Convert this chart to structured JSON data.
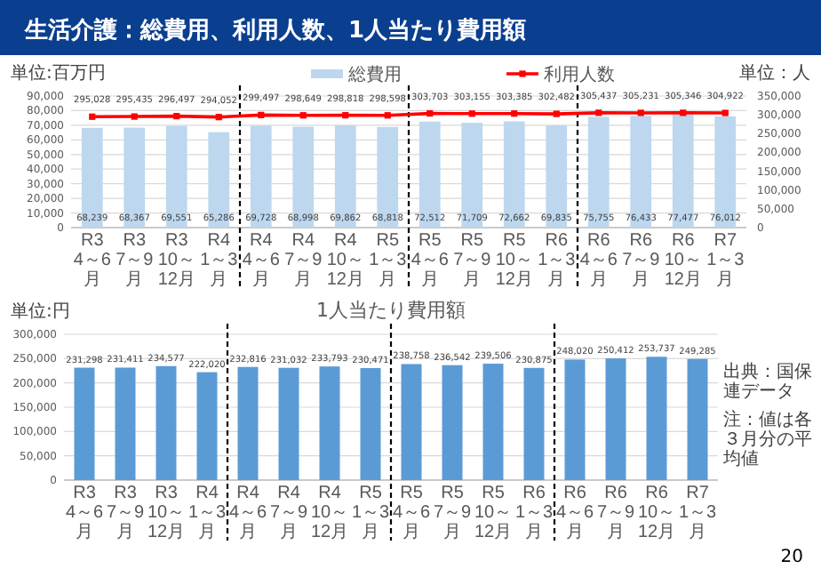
{
  "chart_data": [
    {
      "type": "bar",
      "title": "生活介護：総費用、利用人数、1人当たり費用額",
      "ylabel": "単位:百万円",
      "y2label": "単位：人",
      "categories": [
        "R3\n4～6月",
        "R3\n7～9月",
        "R3\n10～12月",
        "R4\n1～3月",
        "R4\n4～6月",
        "R4\n7～9月",
        "R4\n10～12月",
        "R5\n1～3月",
        "R5\n4～6月",
        "R5\n7～9月",
        "R5\n10～12月",
        "R6\n1～3月",
        "R6\n4～6月",
        "R6\n7～9月",
        "R6\n10～12月",
        "R7\n1～3月"
      ],
      "series": [
        {
          "name": "総費用",
          "type": "bar",
          "color": "#bdd7ee",
          "values": [
            68239,
            68367,
            69551,
            65286,
            69728,
            68998,
            69862,
            68818,
            72512,
            71709,
            72662,
            69835,
            75755,
            76433,
            77477,
            76012
          ],
          "value_labels": [
            "68,239",
            "68,367",
            "69,551",
            "65,286",
            "69,728",
            "68,998",
            "69,862",
            "68,818",
            "72,512",
            "71,709",
            "72,662",
            "69,835",
            "75,755",
            "76,433",
            "77,477",
            "76,012"
          ]
        },
        {
          "name": "利用人数",
          "type": "line",
          "axis": "y2",
          "color": "#ff0000",
          "marker": "square",
          "values": [
            295028,
            295435,
            296497,
            294052,
            299497,
            298649,
            298818,
            298598,
            303703,
            303155,
            303385,
            302482,
            305437,
            305231,
            305346,
            304922
          ],
          "value_labels": [
            "295,028",
            "295,435",
            "296,497",
            "294,052",
            "299,497",
            "298,649",
            "298,818",
            "298,598",
            "303,703",
            "303,155",
            "303,385",
            "302,482",
            "305,437",
            "305,231",
            "305,346",
            "304,922"
          ]
        }
      ],
      "ylim": [
        0,
        90000
      ],
      "yticks": [
        {
          "value": 0,
          "label": "0"
        },
        {
          "value": 10000,
          "label": "10,000"
        },
        {
          "value": 20000,
          "label": "20,000"
        },
        {
          "value": 30000,
          "label": "30,000"
        },
        {
          "value": 40000,
          "label": "40,000"
        },
        {
          "value": 50000,
          "label": "50,000"
        },
        {
          "value": 60000,
          "label": "60,000"
        },
        {
          "value": 70000,
          "label": "70,000"
        },
        {
          "value": 80000,
          "label": "80,000"
        },
        {
          "value": 90000,
          "label": "90,000"
        }
      ],
      "y2lim": [
        0,
        350000
      ],
      "y2ticks": [
        {
          "value": 0,
          "label": "0"
        },
        {
          "value": 50000,
          "label": "50,000"
        },
        {
          "value": 100000,
          "label": "100,000"
        },
        {
          "value": 150000,
          "label": "150,000"
        },
        {
          "value": 200000,
          "label": "200,000"
        },
        {
          "value": 250000,
          "label": "250,000"
        },
        {
          "value": 300000,
          "label": "300,000"
        },
        {
          "value": 350000,
          "label": "350,000"
        }
      ],
      "grid": "y",
      "legend": "top"
    },
    {
      "type": "bar",
      "title": "1人当たり費用額",
      "ylabel": "単位:円",
      "categories": [
        "R3\n4～6月",
        "R3\n7～9月",
        "R3\n10～12月",
        "R4\n1～3月",
        "R4\n4～6月",
        "R4\n7～9月",
        "R4\n10～12月",
        "R5\n1～3月",
        "R5\n4～6月",
        "R5\n7～9月",
        "R5\n10～12月",
        "R6\n1～3月",
        "R6\n4～6月",
        "R6\n7～9月",
        "R6\n10～12月",
        "R7\n1～3月"
      ],
      "series": [
        {
          "color": "#5b9bd5",
          "values": [
            231298,
            231411,
            234577,
            222020,
            232816,
            231032,
            233793,
            230471,
            238758,
            236542,
            239506,
            230875,
            248020,
            250412,
            253737,
            249285
          ],
          "value_labels": [
            "231,298",
            "231,411",
            "234,577",
            "222,020",
            "232,816",
            "231,032",
            "233,793",
            "230,471",
            "238,758",
            "236,542",
            "239,506",
            "230,875",
            "248,020",
            "250,412",
            "253,737",
            "249,285"
          ]
        }
      ],
      "ylim": [
        0,
        300000
      ],
      "yticks": [
        {
          "value": 0,
          "label": "0"
        },
        {
          "value": 50000,
          "label": "50,000"
        },
        {
          "value": 100000,
          "label": "100,000"
        },
        {
          "value": 150000,
          "label": "150,000"
        },
        {
          "value": 200000,
          "label": "200,000"
        },
        {
          "value": 250000,
          "label": "250,000"
        },
        {
          "value": 300000,
          "label": "300,000"
        }
      ],
      "annotations": [
        "出典：国保連データ",
        "注：値は各３月分の平均値",
        "20"
      ],
      "grid": "y"
    }
  ]
}
